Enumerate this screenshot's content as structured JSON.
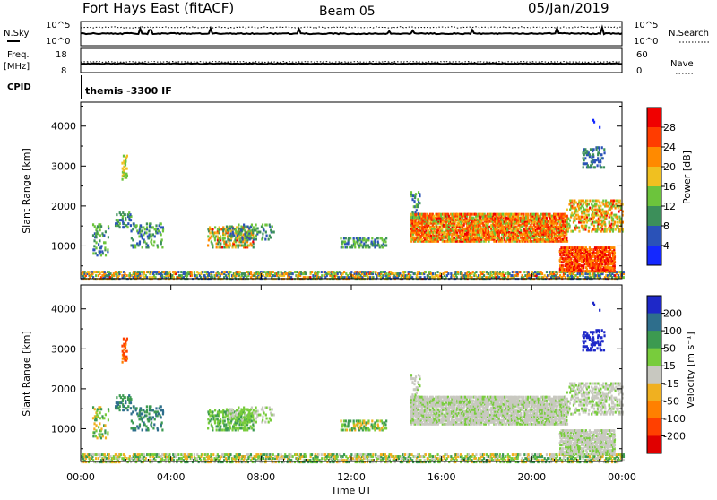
{
  "header": {
    "station": "Fort Hays East (fitACF)",
    "beam": "Beam 05",
    "date": "05/Jan/2019"
  },
  "top_panels": {
    "nsky_label": "N.Sky",
    "nsearch_label": "N.Search",
    "nsky_ticks": [
      "10^5",
      "10^0"
    ],
    "nsearch_ticks": [
      "10^5",
      "10^0"
    ],
    "freq_label": "Freq.",
    "freq_unit": "[MHz]",
    "freq_ticks": [
      "18",
      "8"
    ],
    "nave_label": "Nave",
    "nave_ticks": [
      "60",
      "0"
    ],
    "cpid_label": "CPID",
    "cpid_value": "themis -3300 IF"
  },
  "chart_data": [
    {
      "type": "heatmap",
      "name": "power",
      "ylabel": "Slant Range [km]",
      "yticks": [
        1000,
        2000,
        3000,
        4000
      ],
      "ylim": [
        180,
        4600
      ],
      "colorbar_label": "Power [dB]",
      "colorbar_ticks": [
        "4",
        "8",
        "12",
        "16",
        "20",
        "24",
        "28"
      ],
      "colorbar_colors": [
        "#1428ff",
        "#2a52b8",
        "#3c8f5a",
        "#6cc43c",
        "#f0c020",
        "#ff8a00",
        "#ff3c00",
        "#f00000"
      ]
    },
    {
      "type": "heatmap",
      "name": "velocity",
      "ylabel": "Slant Range [km]",
      "yticks": [
        1000,
        2000,
        3000,
        4000
      ],
      "ylim": [
        180,
        4600
      ],
      "colorbar_label": "Velocity [m s⁻¹]",
      "colorbar_ticks": [
        "200",
        "100",
        "50",
        "15",
        "-15",
        "-50",
        "-100",
        "-200"
      ],
      "colorbar_colors": [
        "#1e28c8",
        "#2e6e8c",
        "#3c9a50",
        "#78cc3c",
        "#c8c8c0",
        "#f0b020",
        "#ff8000",
        "#ff4000",
        "#e00000"
      ]
    }
  ],
  "x_axis": {
    "label": "Time UT",
    "ticks": [
      "00:00",
      "04:00",
      "08:00",
      "12:00",
      "16:00",
      "20:00",
      "00:00"
    ]
  }
}
